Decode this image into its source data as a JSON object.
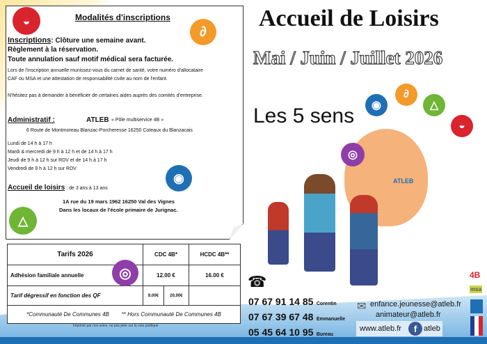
{
  "modalites": {
    "title": "Modalités d'inscriptions",
    "inscriptions_label": "Inscriptions",
    "inscriptions_text": ": Clôture une semaine avant.",
    "line2": "Règlement à la réservation.",
    "line3": "Toute annulation sauf motif médical sera facturée.",
    "info1": "Lors de l'inscription annuelle munissez-vous du carnet de santé, votre numéro d'allocataire",
    "info2": "CAF ou MSA et une attestation de responsabilité civile au nom de l'enfant.",
    "info3": "N'hésitez pas à demander à bénéficier de certaines aides auprès des comités d'entreprise.",
    "admin_label": "Administratif :",
    "admin_org": "ATLEB",
    "admin_pole": "« Pôle multiservice 4B »",
    "admin_address": "6 Route de Montmoreau Blanzac-Porcheresse 16250 Coteaux du Blanzacais",
    "hours": [
      "Lundi de 14 h à 17 h",
      "Mardi & mercredi de 9 h à 12 h et de 14 h à 17 h",
      "Jeudi de 9 h à 12 h  sur RDV et de 14 h à 17 h",
      "Vendredi de 9 h à 12 h sur RDV"
    ],
    "accueil_label": "Accueil de loisirs",
    "accueil_age": " : de 3 ans à 13 ans",
    "accueil_addr1": "1A rue du 19 mars 1962 16250 Val des Vignes",
    "accueil_addr2": "Dans les locaux de l'école primaire de Jurignac."
  },
  "tarifs": {
    "title": "Tarifs 2026",
    "col1": "CDC 4B*",
    "col2": "HCDC 4B**",
    "row1_label": "Adhésion familiale annuelle",
    "row1_cdc": "12.00 €",
    "row1_hcdc": "16.00 €",
    "row2_label": "Tarif dégressif en fonction des QF",
    "row2_min": "8.00€",
    "row2_max": "20,00€",
    "note1": "*Communauté De Communes 4B",
    "note2": "** Hors Communauté De Communes 4B"
  },
  "footer_note": "Imprimé par nos soins, ne pas jeter sur la voie publique",
  "header": {
    "title": "Accueil de Loisirs",
    "period": "Mai / Juin / Juillet 2026",
    "theme": "Les 5 sens",
    "hand_logo": "ATLEB"
  },
  "contacts": {
    "phones": [
      {
        "number": "07 67 91 14 85",
        "name": "Corentin"
      },
      {
        "number": "07 67 39 67 48",
        "name": "Emmanuelle"
      },
      {
        "number": "05 45 64 10 95",
        "name": "Bureau"
      }
    ],
    "emails": [
      "enfance.jeunesse@atleb.fr",
      "animateur@atleb.fr"
    ],
    "website": "www.atleb.fr",
    "facebook": "atleb"
  },
  "logos": [
    "4B",
    "msa"
  ],
  "colors": {
    "taste": "#d9232d",
    "hearing": "#f39a2b",
    "sight": "#1f6fb5",
    "smell": "#6fb536",
    "touch": "#8e3ea8"
  }
}
